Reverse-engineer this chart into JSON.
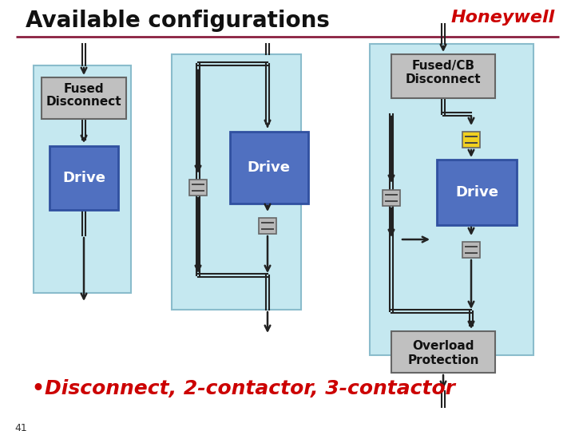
{
  "title": "Available configurations",
  "honeywell_text": "Honeywell",
  "bullet_text": "•Disconnect, 2-contactor, 3-contactor",
  "page_num": "41",
  "bg_color": "#ffffff",
  "light_blue": "#c5e8f0",
  "gray_box": "#c0c0c0",
  "blue_box": "#5070c0",
  "yellow_box": "#f0d020",
  "contactor_gray": "#b8b8b8",
  "line_color": "#222222",
  "red_line": "#8b2040",
  "red_text": "#cc0000"
}
